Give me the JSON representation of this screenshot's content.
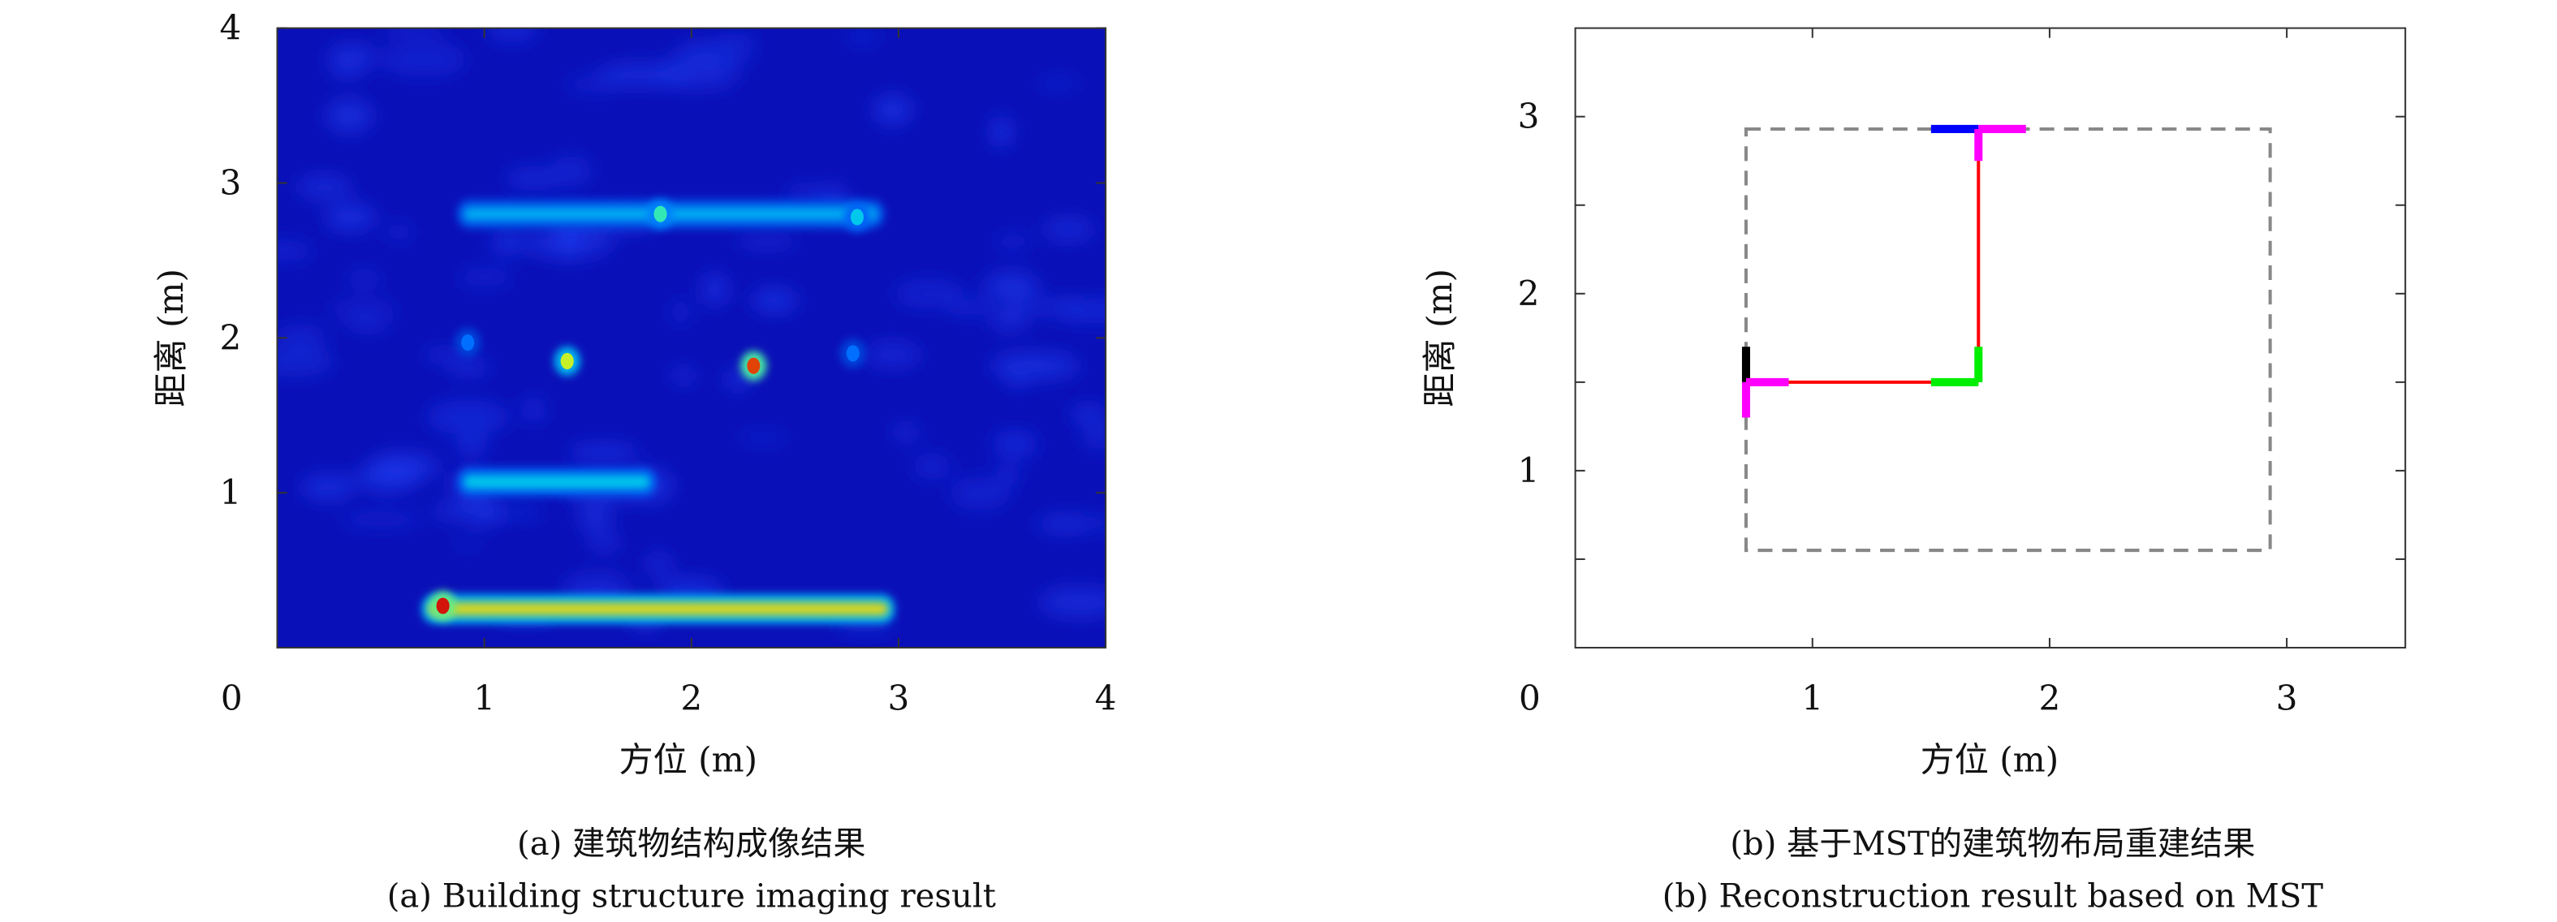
{
  "chart_data": [
    {
      "type": "heatmap",
      "xlabel": "方位 (m)",
      "ylabel": "距离 (m)",
      "xlim": [
        0,
        4
      ],
      "ylim": [
        0,
        4
      ],
      "xticks": [
        "0",
        "1",
        "2",
        "3",
        "4"
      ],
      "yticks": [
        "1",
        "2",
        "3",
        "4"
      ],
      "colormap": "jet",
      "background_color": "#0a10b8",
      "caption_cn": "(a) 建筑物结构成像结果",
      "caption_en": "(a) Building structure imaging result",
      "features": [
        {
          "kind": "line",
          "x": [
            0.9,
            2.9
          ],
          "y": 2.8,
          "intensity": 0.4
        },
        {
          "kind": "spot",
          "x": 1.85,
          "y": 2.8,
          "intensity": 0.55
        },
        {
          "kind": "spot",
          "x": 2.8,
          "y": 2.78,
          "intensity": 0.45
        },
        {
          "kind": "spot",
          "x": 0.92,
          "y": 1.97,
          "intensity": 0.3
        },
        {
          "kind": "spot",
          "x": 1.4,
          "y": 1.85,
          "intensity": 0.7
        },
        {
          "kind": "spot",
          "x": 2.3,
          "y": 1.82,
          "intensity": 0.95
        },
        {
          "kind": "spot",
          "x": 2.78,
          "y": 1.9,
          "intensity": 0.3
        },
        {
          "kind": "line",
          "x": [
            0.9,
            1.8
          ],
          "y": 1.07,
          "intensity": 0.45
        },
        {
          "kind": "line",
          "x": [
            0.73,
            2.95
          ],
          "y": 0.25,
          "intensity": 0.75
        },
        {
          "kind": "spot",
          "x": 0.8,
          "y": 0.27,
          "intensity": 1.0
        }
      ]
    },
    {
      "type": "line",
      "xlabel": "方位 (m)",
      "ylabel": "距离 (m)",
      "xlim": [
        0,
        3.5
      ],
      "ylim": [
        0,
        3.5
      ],
      "xticks": [
        "0",
        "1",
        "2",
        "3"
      ],
      "yticks": [
        "1",
        "2",
        "3"
      ],
      "caption_cn": "(b) 基于MST的建筑物布局重建结果",
      "caption_en": "(b) Reconstruction result based on MST",
      "boundary": {
        "x": [
          0.72,
          2.93
        ],
        "y": [
          0.55,
          2.93
        ],
        "color": "#888888",
        "style": "dashed"
      },
      "segments": [
        {
          "color": "#ff0000",
          "x": [
            0.72,
            1.7
          ],
          "y": [
            1.5,
            1.5
          ]
        },
        {
          "color": "#ff0000",
          "x": [
            1.7,
            1.7
          ],
          "y": [
            1.5,
            2.93
          ]
        },
        {
          "color": "#000000",
          "x": [
            0.72,
            0.72
          ],
          "y": [
            1.5,
            1.7
          ]
        },
        {
          "color": "#ff00ff",
          "x": [
            0.72,
            0.9
          ],
          "y": [
            1.5,
            1.5
          ]
        },
        {
          "color": "#ff00ff",
          "x": [
            0.72,
            0.72
          ],
          "y": [
            1.3,
            1.5
          ]
        },
        {
          "color": "#00ee00",
          "x": [
            1.5,
            1.7
          ],
          "y": [
            1.5,
            1.5
          ]
        },
        {
          "color": "#00ee00",
          "x": [
            1.7,
            1.7
          ],
          "y": [
            1.5,
            1.7
          ]
        },
        {
          "color": "#0000ff",
          "x": [
            1.5,
            1.7
          ],
          "y": [
            2.93,
            2.93
          ]
        },
        {
          "color": "#ff00ff",
          "x": [
            1.7,
            1.9
          ],
          "y": [
            2.93,
            2.93
          ]
        },
        {
          "color": "#ff00ff",
          "x": [
            1.7,
            1.7
          ],
          "y": [
            2.75,
            2.93
          ]
        }
      ]
    }
  ]
}
